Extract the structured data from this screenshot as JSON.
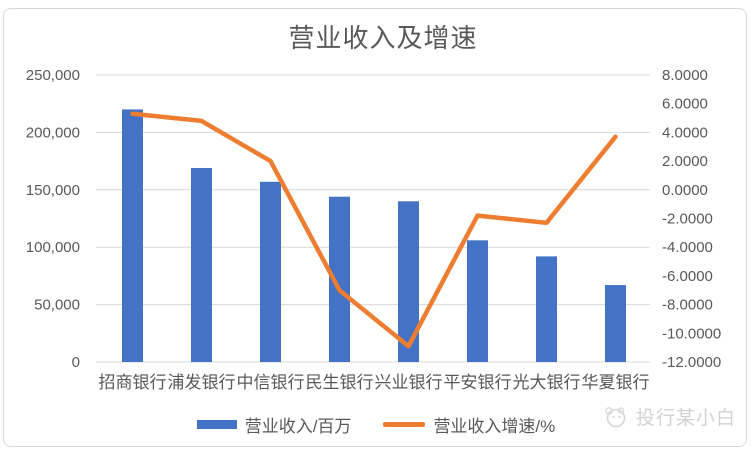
{
  "title": "营业收入及增速",
  "colors": {
    "bar": "#4472C4",
    "line": "#ED7D31",
    "gridline": "#D9D9D9",
    "axis_text": "#595959",
    "title_text": "#595959",
    "frame_border": "#D9D9D9",
    "watermark": "#D2D2D2"
  },
  "legend": {
    "items": [
      {
        "label": "营业收入/百万",
        "marker": "bar",
        "color": "#4472C4"
      },
      {
        "label": "营业收入增速/%",
        "marker": "line",
        "color": "#ED7D31"
      }
    ]
  },
  "watermark": {
    "text": "投行某小白"
  },
  "chart_data": {
    "type": "bar",
    "subtype": "combo-bar-line",
    "title": "营业收入及增速",
    "categories": [
      "招商银行",
      "浦发银行",
      "中信银行",
      "民生银行",
      "兴业银行",
      "平安银行",
      "光大银行",
      "华夏银行"
    ],
    "series": [
      {
        "name": "营业收入/百万",
        "type": "bar",
        "axis": "left",
        "color": "#4472C4",
        "values": [
          220000,
          169000,
          157000,
          144000,
          140000,
          106000,
          92000,
          67000
        ]
      },
      {
        "name": "营业收入增速/%",
        "type": "line",
        "axis": "right",
        "color": "#ED7D31",
        "values": [
          5.3,
          4.8,
          2.0,
          -7.0,
          -10.9,
          -1.8,
          -2.3,
          3.7
        ]
      }
    ],
    "left_axis": {
      "min": 0,
      "max": 250000,
      "tick_step": 50000,
      "tick_labels": [
        "250,000",
        "200,000",
        "150,000",
        "100,000",
        "50,000",
        "0"
      ]
    },
    "right_axis": {
      "min": -12,
      "max": 8,
      "tick_step": 2,
      "tick_labels": [
        "8.0000",
        "6.0000",
        "4.0000",
        "2.0000",
        "0.0000",
        "-2.0000",
        "-4.0000",
        "-6.0000",
        "-8.0000",
        "-10.0000",
        "-12.0000"
      ]
    },
    "grid": true,
    "legend_position": "bottom"
  }
}
